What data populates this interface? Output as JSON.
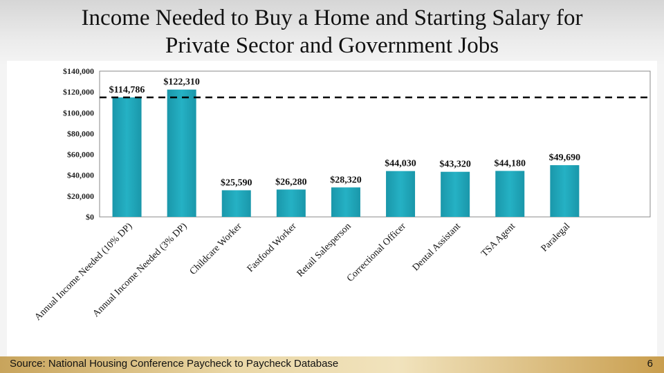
{
  "slide": {
    "title_line1": "Income Needed to Buy a Home and Starting Salary for",
    "title_line2": "Private Sector and Government Jobs",
    "source": "Source: National Housing Conference Paycheck to Paycheck Database",
    "page_number": "6"
  },
  "colors": {
    "bar": "#25b1c4",
    "bar_dark": "#1a97aa",
    "reference_line": "#000000",
    "axis": "#888888"
  },
  "chart_data": {
    "type": "bar",
    "categories": [
      "Annual Income Needed (10% DP)",
      "Annual Income Needed (3% DP)",
      "Childcare Worker",
      "Fastfood Worker",
      "Retail Salesperson",
      "Correctional Officer",
      "Dental Assistant",
      "TSA Agent",
      "Paralegal"
    ],
    "values": [
      114786,
      122310,
      25590,
      26280,
      28320,
      44030,
      43320,
      44180,
      49690
    ],
    "data_labels": [
      "$114,786",
      "$122,310",
      "$25,590",
      "$26,280",
      "$28,320",
      "$44,030",
      "$43,320",
      "$44,180",
      "$49,690"
    ],
    "ylim": [
      0,
      140000
    ],
    "yticks": [
      0,
      20000,
      40000,
      60000,
      80000,
      100000,
      120000,
      140000
    ],
    "ytick_labels": [
      "$0",
      "$20,000",
      "$40,000",
      "$60,000",
      "$80,000",
      "$100,000",
      "$120,000",
      "$140,000"
    ],
    "reference_line": {
      "value": 114786,
      "style": "dashed"
    },
    "grid": false,
    "xlabel": "",
    "ylabel": ""
  }
}
